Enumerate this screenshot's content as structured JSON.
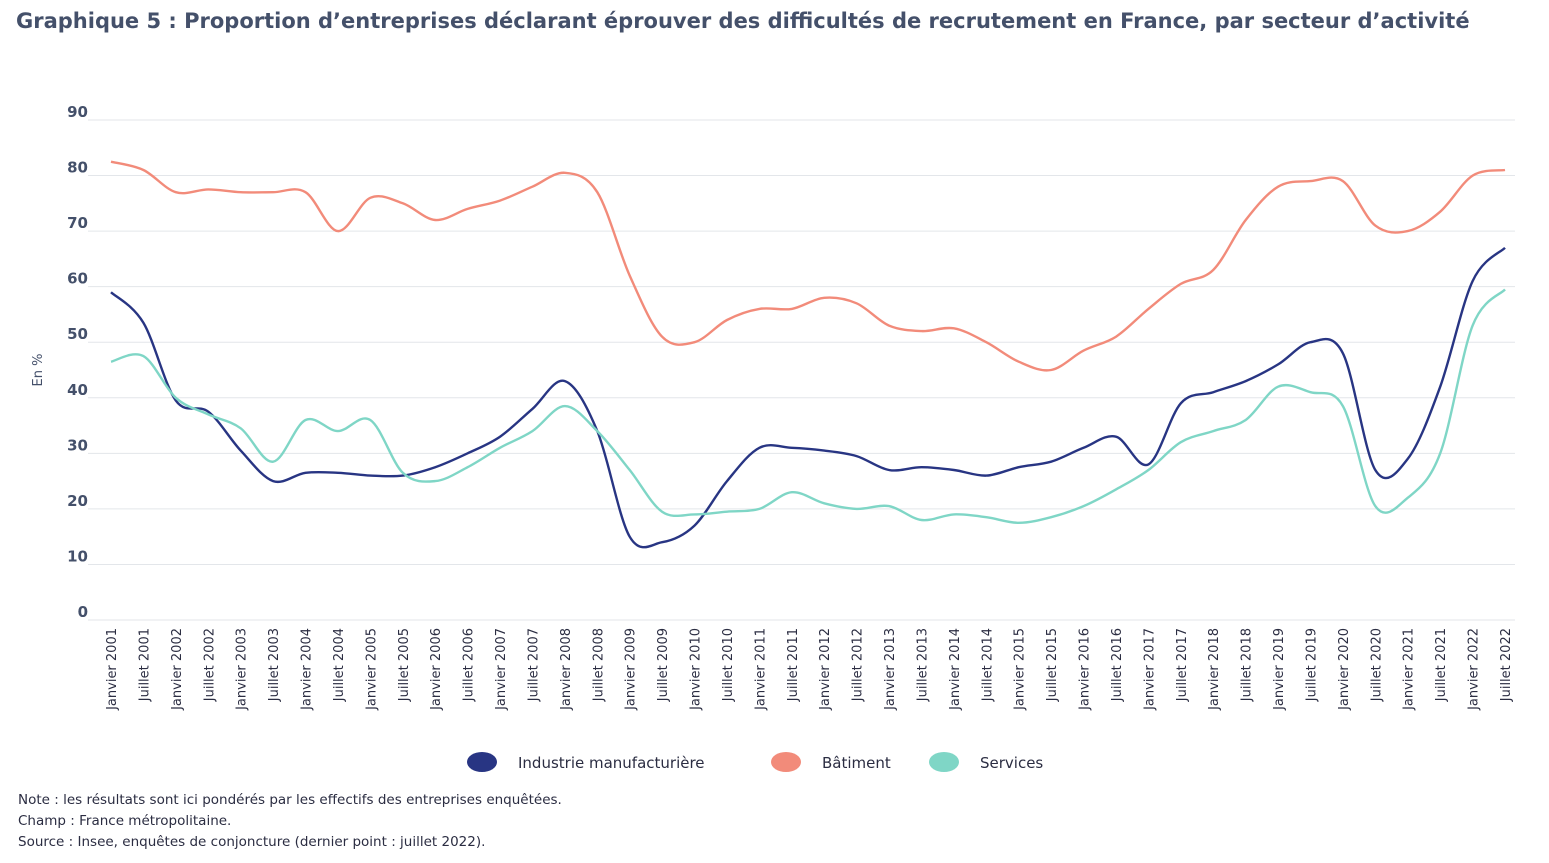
{
  "title": "Graphique 5 : Proportion d’entreprises déclarant éprouver des difficultés de recrutement en France, par secteur d’activité",
  "notes": {
    "note": "Note : les résultats sont ici pondérés par les effectifs des entreprises enquêtées.",
    "champ": "Champ : France métropolitaine.",
    "source": "Source : Insee, enquêtes de conjoncture (dernier point : juillet 2022)."
  },
  "chart_data": {
    "type": "line",
    "title": "Graphique 5 : Proportion d’entreprises déclarant éprouver des difficultés de recrutement en France, par secteur d’activité",
    "xlabel": "",
    "ylabel": "En %",
    "ylim": [
      0,
      90
    ],
    "yticks": [
      0,
      10,
      20,
      30,
      40,
      50,
      60,
      70,
      80,
      90
    ],
    "grid": true,
    "legend_position": "bottom",
    "categories": [
      "Janvier 2001",
      "Juillet 2001",
      "Janvier 2002",
      "Juillet 2002",
      "Janvier 2003",
      "Juillet 2003",
      "Janvier 2004",
      "Juillet 2004",
      "Janvier 2005",
      "Juillet 2005",
      "Janvier 2006",
      "Juillet 2006",
      "Janvier 2007",
      "Juillet 2007",
      "Janvier 2008",
      "Juillet 2008",
      "Janvier 2009",
      "Juillet 2009",
      "Janvier 2010",
      "Juillet 2010",
      "Janvier 2011",
      "Juillet 2011",
      "Janvier 2012",
      "Juillet 2012",
      "Janvier 2013",
      "Juillet 2013",
      "Janvier 2014",
      "Juillet 2014",
      "Janvier 2015",
      "Juillet 2015",
      "Janvier 2016",
      "Juillet 2016",
      "Janvier 2017",
      "Juillet 2017",
      "Janvier 2018",
      "Juillet 2018",
      "Janvier 2019",
      "Juillet 2019",
      "Janvier 2020",
      "Juillet 2020",
      "Janvier 2021",
      "Juillet 2021",
      "Janvier 2022",
      "Juillet 2022"
    ],
    "series": [
      {
        "name": "Industrie manufacturière",
        "color": "#283583",
        "values": [
          59,
          53.5,
          39.5,
          37.5,
          30.5,
          25,
          26.5,
          26.5,
          26,
          26,
          27.5,
          30,
          33,
          38,
          43,
          34,
          15,
          14,
          17,
          25,
          31,
          31,
          30.5,
          29.5,
          27,
          27.5,
          27,
          26,
          27.5,
          28.5,
          31,
          33,
          28,
          39,
          41,
          43,
          46,
          50,
          48,
          27,
          29,
          42,
          61,
          67
        ]
      },
      {
        "name": "Bâtiment",
        "color": "#f28b7a",
        "values": [
          82.5,
          81,
          77,
          77.5,
          77,
          77,
          77,
          70,
          76,
          75,
          72,
          74,
          75.5,
          78,
          80.5,
          77,
          62,
          51,
          50,
          54,
          56,
          56,
          58,
          57,
          53,
          52,
          52.5,
          50,
          46.5,
          45,
          48.5,
          51,
          56,
          60.5,
          63,
          72,
          78,
          79,
          79,
          71,
          70,
          73.5,
          80,
          81
        ]
      },
      {
        "name": "Services",
        "color": "#7fd6c6",
        "values": [
          46.5,
          47.5,
          40,
          37,
          34.5,
          28.5,
          36,
          34,
          36,
          26.5,
          25,
          27.5,
          31,
          34,
          38.5,
          34,
          27,
          19.5,
          19,
          19.5,
          20,
          23,
          21,
          20,
          20.5,
          18,
          19,
          18.5,
          17.5,
          18.5,
          20.5,
          23.5,
          27,
          32,
          34,
          36,
          42,
          41,
          38.5,
          20.5,
          22,
          30,
          53,
          59.5
        ]
      }
    ]
  }
}
